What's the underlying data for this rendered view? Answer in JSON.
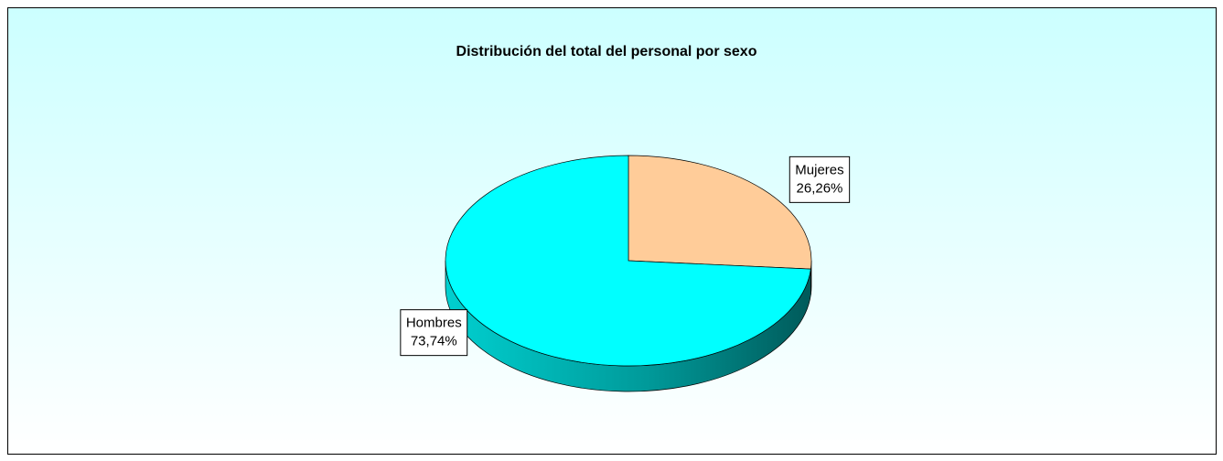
{
  "chart_data": {
    "type": "pie",
    "title": "Distribución del total del personal por sexo",
    "categories": [
      "Mujeres",
      "Hombres"
    ],
    "values": [
      26.26,
      73.74
    ],
    "value_labels": [
      "26,26%",
      "73,74%"
    ],
    "colors": [
      "#ffcc99",
      "#00ffff"
    ]
  }
}
